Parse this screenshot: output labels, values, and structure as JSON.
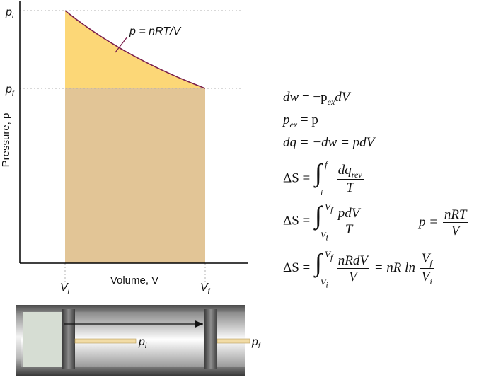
{
  "graph": {
    "y_tick_top": "p",
    "y_tick_top_sub": "i",
    "y_tick_bottom": "p",
    "y_tick_bottom_sub": "f",
    "x_tick_left": "V",
    "x_tick_left_sub": "i",
    "x_tick_right": "V",
    "x_tick_right_sub": "f",
    "ylabel": "Pressure, p",
    "xlabel": "Volume, V",
    "curve_label": "p = nRT/V",
    "colors": {
      "work_area": "#e2c596",
      "extra_area": "#fcd777",
      "curve": "#7a1f4d",
      "axis": "#000000",
      "guide": "#b0b0b0"
    }
  },
  "cylinder": {
    "pressure_left": "p",
    "pressure_left_sub": "i",
    "pressure_right": "p",
    "pressure_right_sub": "f"
  },
  "equations": {
    "eq1_lhs": "dw",
    "eq1_rhs": "= −p",
    "eq1_sub": "ex",
    "eq1_tail": "dV",
    "eq2": "p",
    "eq2_sub": "ex",
    "eq2_rhs": "= p",
    "eq3": "dq = −dw = pdV",
    "eq4_lhs": "ΔS =",
    "eq4_int_up": "f",
    "eq4_int_lo": "i",
    "eq4_num": "dq",
    "eq4_num_sub": "rev",
    "eq4_den": "T",
    "eq5_lhs": "ΔS =",
    "eq5_int_up": "V",
    "eq5_int_up_sub": "f",
    "eq5_int_lo": "V",
    "eq5_int_lo_sub": "i",
    "eq5_num": "pdV",
    "eq5_den": "T",
    "eq5b_lhs": "p =",
    "eq5b_num": "nRT",
    "eq5b_den": "V",
    "eq6_lhs": "ΔS =",
    "eq6_int_up": "V",
    "eq6_int_up_sub": "f",
    "eq6_int_lo": "V",
    "eq6_int_lo_sub": "i",
    "eq6_num": "nRdV",
    "eq6_den": "V",
    "eq6_mid": "= nR ln",
    "eq6_num2": "V",
    "eq6_num2_sub": "f",
    "eq6_den2": "V",
    "eq6_den2_sub": "i"
  }
}
